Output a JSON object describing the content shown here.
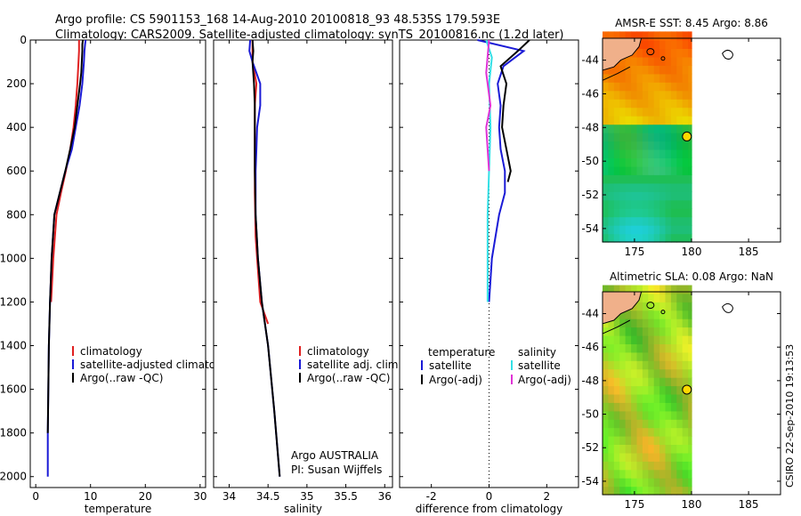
{
  "header": {
    "line1": "Argo profile: CS 5901153_168 14-Aug-2010 20100818_93 48.535S 179.593E",
    "line2": "Climatology: CARS2009. Satellite-adjusted climatology: synTS_20100816.nc (1.2d later)"
  },
  "footer": {
    "stamp": "CSIRO 22-Sep-2010 19:13:53"
  },
  "colors": {
    "climatology": "#e02020",
    "satellite": "#1a1ad6",
    "argo": "#000000",
    "sal_satellite": "#33e0e6",
    "sal_argo": "#e033d6",
    "coast": "#000000",
    "land": "#f0b08a",
    "float_marker": "#ffd800"
  },
  "chart_data": [
    {
      "id": "temperature_panel",
      "type": "line",
      "xlabel": "temperature",
      "xlim": [
        -1,
        31
      ],
      "xticks": [
        0,
        10,
        20,
        30
      ],
      "ylim": [
        2050,
        0
      ],
      "yticks": [
        0,
        200,
        400,
        600,
        800,
        1000,
        1200,
        1400,
        1600,
        1800,
        2000
      ],
      "legend": {
        "placement": "bottom-center",
        "entries": [
          "climatology",
          "satellite-adjusted climatology",
          "Argo(..raw -QC)"
        ]
      },
      "series": [
        {
          "name": "climatology",
          "color_key": "climatology",
          "x": [
            7.9,
            7.9,
            7.8,
            7.6,
            7.3,
            6.9,
            6.3,
            5.5,
            4.6,
            3.8,
            3.2,
            2.8
          ],
          "y": [
            0,
            50,
            100,
            200,
            300,
            400,
            500,
            600,
            700,
            800,
            1000,
            1200
          ]
        },
        {
          "name": "satellite-adjusted climatology",
          "color_key": "satellite",
          "x": [
            9.1,
            9.0,
            8.9,
            8.8,
            8.5,
            8.0,
            7.3,
            6.6,
            5.4,
            4.4,
            3.4,
            2.9,
            2.6,
            2.4,
            2.3,
            2.2,
            2.2
          ],
          "y": [
            0,
            20,
            50,
            100,
            200,
            300,
            400,
            500,
            600,
            700,
            800,
            1000,
            1200,
            1400,
            1600,
            1800,
            2000
          ]
        },
        {
          "name": "Argo(..raw -QC)",
          "color_key": "argo",
          "x": [
            8.6,
            8.5,
            8.5,
            8.4,
            8.3,
            8.1,
            7.6,
            7.1,
            6.3,
            5.4,
            4.4,
            3.4,
            2.9,
            2.6,
            2.4,
            2.3,
            2.2
          ],
          "y": [
            0,
            20,
            50,
            100,
            150,
            200,
            300,
            400,
            500,
            600,
            700,
            800,
            1000,
            1200,
            1400,
            1600,
            1800
          ]
        }
      ]
    },
    {
      "id": "salinity_panel",
      "type": "line",
      "xlabel": "salinity",
      "xlim": [
        33.8,
        36.1
      ],
      "xticks": [
        34,
        34.5,
        35,
        35.5,
        36
      ],
      "ylim": [
        2050,
        0
      ],
      "legend": {
        "placement": "bottom-center",
        "entries": [
          "climatology",
          "satellite adj. clim.",
          "Argo(..raw -QC)"
        ]
      },
      "annotations": [
        "Argo AUSTRALIA",
        "PI: Susan Wijffels"
      ],
      "series": [
        {
          "name": "climatology",
          "color_key": "climatology",
          "x": [
            34.3,
            34.3,
            34.35,
            34.33,
            34.33,
            34.33,
            34.34,
            34.36,
            34.4,
            34.5
          ],
          "y": [
            0,
            100,
            200,
            300,
            500,
            700,
            900,
            1000,
            1200,
            1300
          ]
        },
        {
          "name": "satellite adj. clim.",
          "color_key": "satellite",
          "x": [
            34.27,
            34.26,
            34.3,
            34.4,
            34.4,
            34.36,
            34.35,
            34.34,
            34.34,
            34.37,
            34.42,
            34.5,
            34.58,
            34.65
          ],
          "y": [
            0,
            50,
            100,
            200,
            300,
            400,
            500,
            600,
            800,
            1000,
            1200,
            1400,
            1700,
            2000
          ]
        },
        {
          "name": "Argo(..raw -QC)",
          "color_key": "argo",
          "x": [
            34.3,
            34.31,
            34.3,
            34.32,
            34.33,
            34.33,
            34.33,
            34.33,
            34.34,
            34.37,
            34.42,
            34.5,
            34.58,
            34.65
          ],
          "y": [
            0,
            50,
            100,
            200,
            300,
            400,
            500,
            600,
            800,
            1000,
            1200,
            1400,
            1700,
            2000
          ]
        }
      ]
    },
    {
      "id": "difference_panel",
      "type": "line",
      "xlabel": "difference from climatology",
      "xlim": [
        -3.1,
        3.1
      ],
      "xticks": [
        -2,
        0,
        2
      ],
      "ylim": [
        2050,
        0
      ],
      "legend": {
        "placement": "bottom-center",
        "left_title": "temperature",
        "right_title": "salinity",
        "left_entries": [
          "satellite",
          "Argo(-adj)"
        ],
        "right_entries": [
          "satellite",
          "Argo(-adj)"
        ]
      },
      "series": [
        {
          "name": "temperature satellite",
          "color_key": "satellite",
          "x": [
            -0.4,
            1.2,
            0.5,
            0.3,
            0.4,
            0.35,
            0.4,
            0.55,
            0.55,
            0.35,
            0.1,
            0.0
          ],
          "y": [
            0,
            50,
            120,
            200,
            300,
            400,
            500,
            600,
            700,
            800,
            1000,
            1200
          ]
        },
        {
          "name": "temperature Argo(-adj)",
          "color_key": "argo",
          "x": [
            1.4,
            1.0,
            0.4,
            0.6,
            0.5,
            0.45,
            0.6,
            0.75,
            0.65
          ],
          "y": [
            0,
            50,
            120,
            200,
            300,
            400,
            500,
            600,
            650
          ]
        },
        {
          "name": "salinity satellite",
          "color_key": "sal_satellite",
          "x": [
            -0.1,
            0.1,
            0.0,
            0.05,
            0.0,
            -0.05,
            -0.05,
            -0.05
          ],
          "y": [
            0,
            80,
            200,
            400,
            600,
            800,
            1000,
            1200
          ]
        },
        {
          "name": "salinity Argo(-adj)",
          "color_key": "sal_argo",
          "x": [
            0.0,
            -0.1,
            0.05,
            -0.1,
            -0.05,
            0.0
          ],
          "y": [
            0,
            150,
            300,
            400,
            500,
            600
          ]
        }
      ]
    },
    {
      "id": "sst_map",
      "type": "heatmap",
      "title": "AMSR-E SST: 8.45 Argo: 8.86",
      "xlim": [
        172.2,
        187.8
      ],
      "ylim": [
        -54.8,
        -42.7
      ],
      "xticks": [
        175,
        180,
        185
      ],
      "yticks": [
        -44,
        -46,
        -48,
        -50,
        -52,
        -54
      ],
      "data_lon_max": 180,
      "float_position": {
        "lon": 179.593,
        "lat": -48.535
      }
    },
    {
      "id": "sla_map",
      "type": "heatmap",
      "title": "Altimetric SLA: 0.08 Argo: NaN",
      "xlim": [
        172.2,
        187.8
      ],
      "ylim": [
        -54.8,
        -42.7
      ],
      "xticks": [
        175,
        180,
        185
      ],
      "yticks": [
        -44,
        -46,
        -48,
        -50,
        -52,
        -54
      ],
      "data_lon_max": 180,
      "float_position": {
        "lon": 179.593,
        "lat": -48.535
      }
    }
  ]
}
